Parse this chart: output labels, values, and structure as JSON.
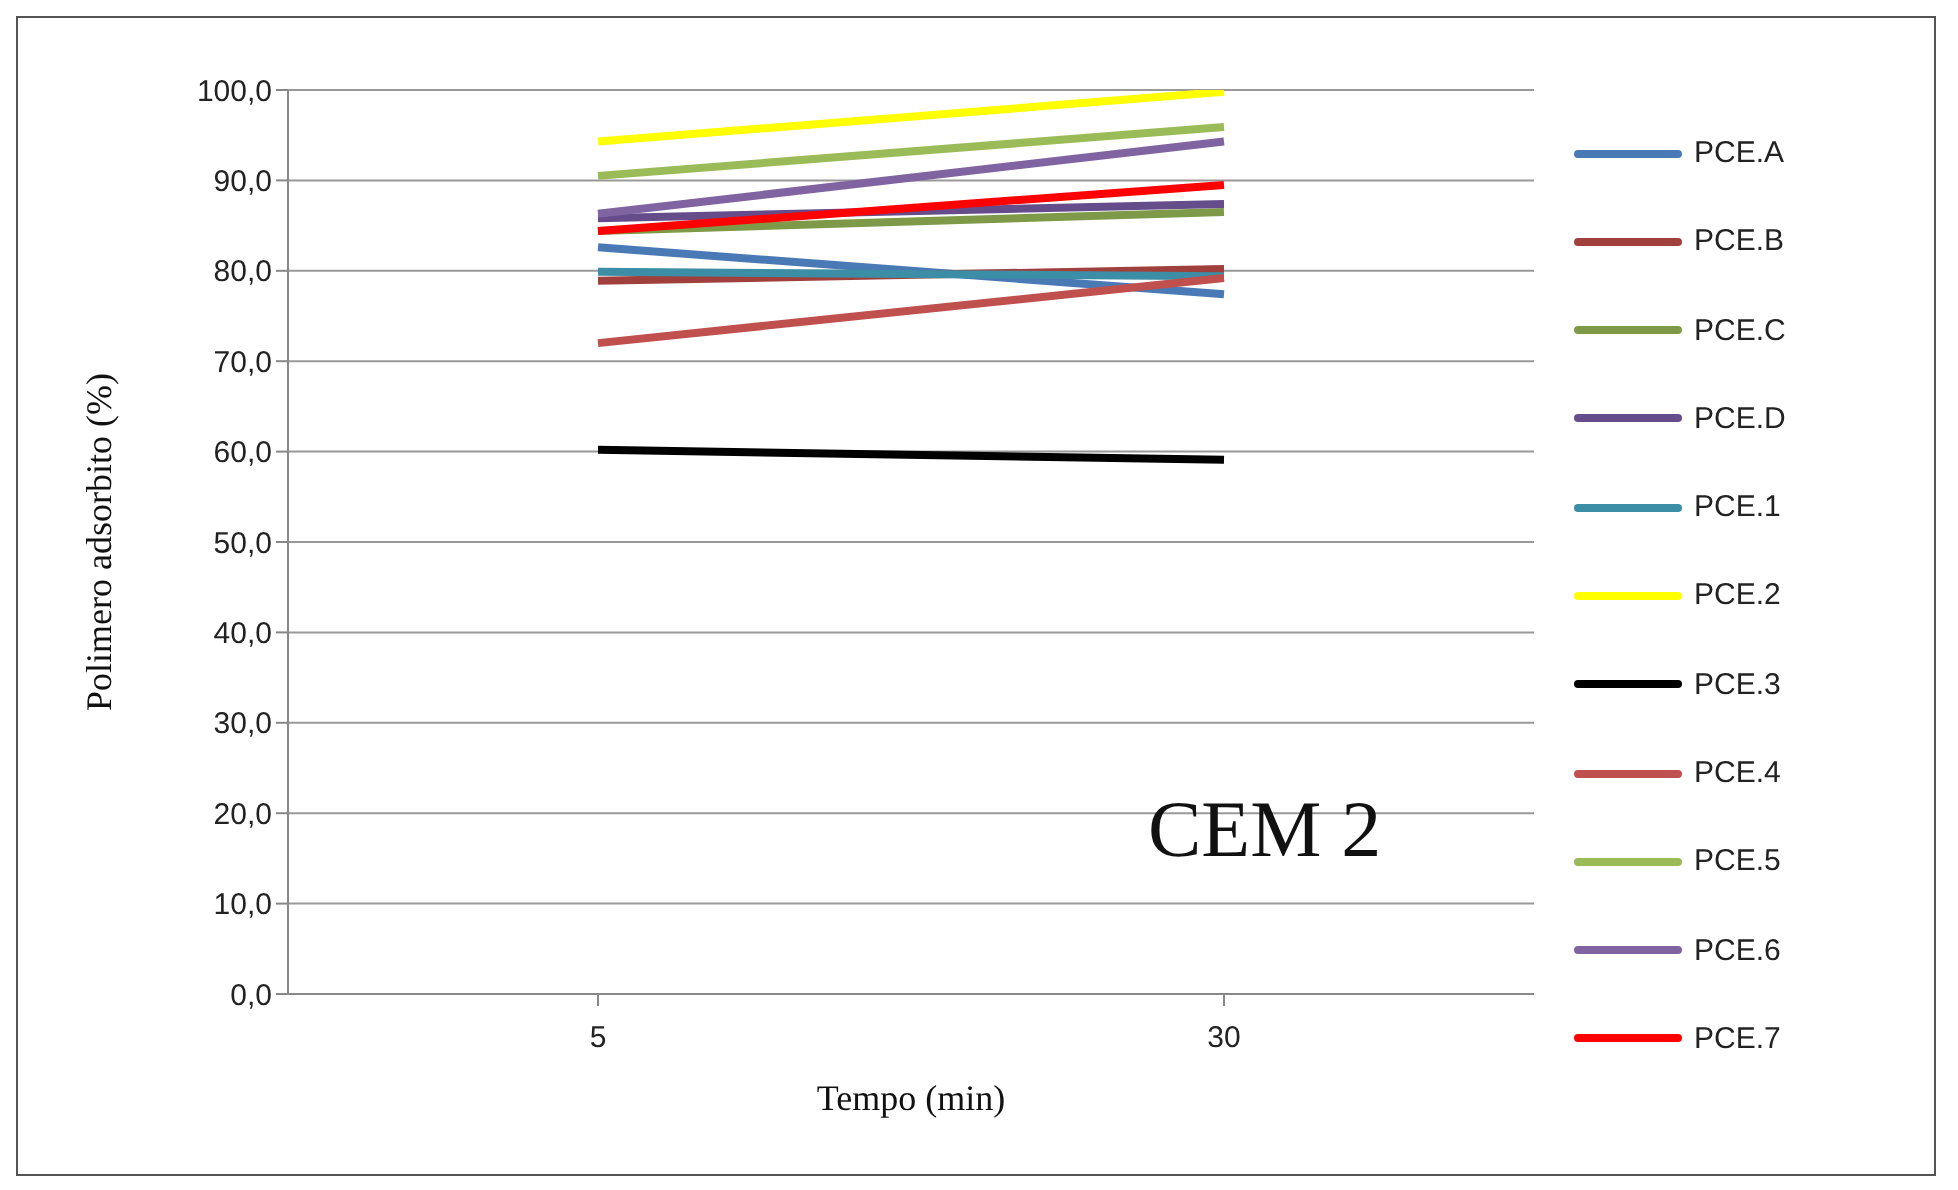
{
  "chart_data": {
    "type": "line",
    "xlabel": "Tempo (min)",
    "ylabel": "Polimero adsorbito (%)",
    "categories": [
      "5",
      "30"
    ],
    "ylim": [
      0,
      100
    ],
    "yticks": [
      {
        "value": 0,
        "label": "0,0"
      },
      {
        "value": 10,
        "label": "10,0"
      },
      {
        "value": 20,
        "label": "20,0"
      },
      {
        "value": 30,
        "label": "30,0"
      },
      {
        "value": 40,
        "label": "40,0"
      },
      {
        "value": 50,
        "label": "50,0"
      },
      {
        "value": 60,
        "label": "60,0"
      },
      {
        "value": 70,
        "label": "70,0"
      },
      {
        "value": 80,
        "label": "80,0"
      },
      {
        "value": 90,
        "label": "90,0"
      },
      {
        "value": 100,
        "label": "100,0"
      }
    ],
    "grid": "y",
    "legend": "right",
    "marker": "none",
    "line_style": "solid",
    "annotations": [
      "CEM 2"
    ],
    "series": [
      {
        "name": "PCE.A",
        "color": "#4a7ab5",
        "values": [
          82.6,
          77.4
        ]
      },
      {
        "name": "PCE.B",
        "color": "#a0403c",
        "values": [
          78.9,
          80.2
        ]
      },
      {
        "name": "PCE.C",
        "color": "#7e9a48",
        "values": [
          84.4,
          86.5
        ]
      },
      {
        "name": "PCE.D",
        "color": "#654c8a",
        "values": [
          85.8,
          87.4
        ]
      },
      {
        "name": "PCE.1",
        "color": "#3b8ea5",
        "values": [
          79.9,
          79.4
        ]
      },
      {
        "name": "PCE.2",
        "color": "#ffff00",
        "values": [
          94.3,
          99.8
        ]
      },
      {
        "name": "PCE.3",
        "color": "#000000",
        "values": [
          60.2,
          59.1
        ]
      },
      {
        "name": "PCE.4",
        "color": "#c0504d",
        "values": [
          72.0,
          79.2
        ]
      },
      {
        "name": "PCE.5",
        "color": "#9bbb59",
        "values": [
          90.5,
          95.9
        ]
      },
      {
        "name": "PCE.6",
        "color": "#8064a2",
        "values": [
          86.3,
          94.3
        ]
      },
      {
        "name": "PCE.7",
        "color": "#ff0000",
        "values": [
          84.4,
          89.5
        ]
      }
    ]
  }
}
